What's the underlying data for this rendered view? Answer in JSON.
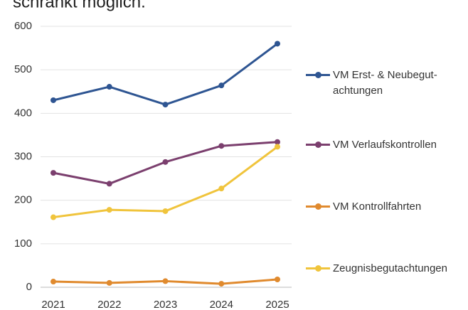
{
  "caption": "schränkt möglich.",
  "chart_data": {
    "type": "line",
    "x": [
      "2021",
      "2022",
      "2023",
      "2024",
      "2025"
    ],
    "series": [
      {
        "name": "VM Erst- & Neubegut-\nachtungen",
        "color": "#2e5592",
        "values": [
          430,
          461,
          420,
          464,
          560
        ]
      },
      {
        "name": "VM Verlaufskontrollen",
        "color": "#7b3f6e",
        "values": [
          263,
          238,
          288,
          325,
          334
        ]
      },
      {
        "name": "VM Kontrollfahrten",
        "color": "#e08a2e",
        "values": [
          13,
          10,
          14,
          8,
          18
        ]
      },
      {
        "name": "Zeugnisbegutachtungen",
        "color": "#f0c43c",
        "values": [
          161,
          178,
          175,
          227,
          323
        ]
      }
    ],
    "ylim": [
      0,
      600
    ],
    "yticks": [
      0,
      100,
      200,
      300,
      400,
      500,
      600
    ],
    "grid": true,
    "legend": "right"
  }
}
